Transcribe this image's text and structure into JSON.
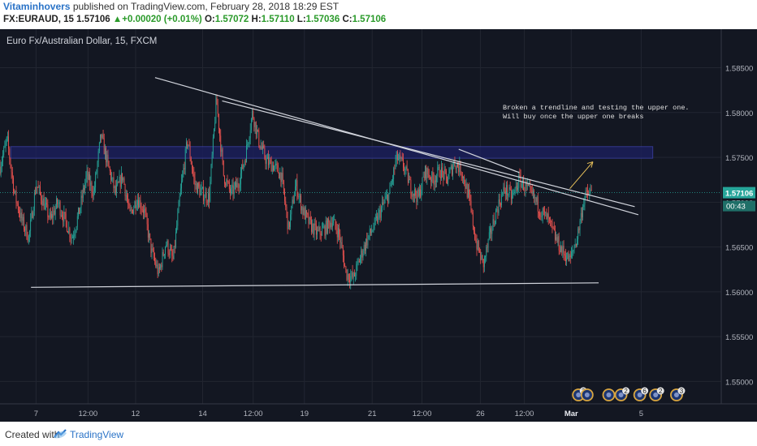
{
  "header": {
    "user": "Vitaminhovers",
    "published": " published on TradingView.com, February 28, 2018 18:29 EST",
    "symbol": "FX:EURAUD, 15",
    "last": "1.57106",
    "change": "+0.00020 (+0.01%)",
    "open_label": "O:",
    "open": "1.57072",
    "high_label": "H:",
    "high": "1.57110",
    "low_label": "L:",
    "low": "1.57036",
    "close_label": "C:",
    "close": "1.57106"
  },
  "footer": {
    "created": "Created with",
    "brand": "TradingView"
  },
  "colors": {
    "background": "#131722",
    "up": "#26a69a",
    "down": "#ef5350",
    "line": "#d1d4dc",
    "zone": "#1b1f5a",
    "zone_border": "#3a3fa0",
    "price_line": "#26a69a",
    "arrow": "#e8c15a"
  },
  "chart_data": {
    "type": "candlestick",
    "title": "Euro Fx/Australian Dollar, 15, FXCM",
    "ylim": [
      1.5475,
      1.5893
    ],
    "yticks": [
      "1.58500",
      "1.58000",
      "1.57500",
      "1.57000",
      "1.56500",
      "1.56000",
      "1.55500",
      "1.55000"
    ],
    "ytick_values": [
      1.585,
      1.58,
      1.575,
      1.57,
      1.565,
      1.56,
      1.555,
      1.55
    ],
    "xlim": [
      0,
      100
    ],
    "xticks": [
      "7",
      "12:00",
      "12",
      "14",
      "12:00",
      "19",
      "21",
      "12:00",
      "26",
      "12:00",
      "Mar",
      "5"
    ],
    "xtick_values": [
      5.0,
      12.2,
      18.8,
      28.1,
      35.1,
      42.2,
      51.6,
      58.5,
      66.6,
      72.7,
      79.2,
      88.9
    ],
    "last_price": "1.57106",
    "countdown": "00:43",
    "price_axis_partial": "1",
    "annotation": [
      "Broken a trendline and testing the upper one.",
      "Will buy once the upper one breaks"
    ],
    "anchors": [
      [
        0,
        1.574
      ],
      [
        1,
        1.577
      ],
      [
        2,
        1.571
      ],
      [
        3,
        1.568
      ],
      [
        4,
        1.566
      ],
      [
        5,
        1.572
      ],
      [
        7,
        1.568
      ],
      [
        8,
        1.57
      ],
      [
        10,
        1.566
      ],
      [
        11,
        1.569
      ],
      [
        12,
        1.573
      ],
      [
        13,
        1.571
      ],
      [
        14,
        1.5775
      ],
      [
        15,
        1.574
      ],
      [
        16,
        1.571
      ],
      [
        17,
        1.573
      ],
      [
        18,
        1.5685
      ],
      [
        19,
        1.5705
      ],
      [
        20,
        1.569
      ],
      [
        21,
        1.5645
      ],
      [
        22,
        1.562
      ],
      [
        23,
        1.5655
      ],
      [
        24,
        1.5635
      ],
      [
        25,
        1.571
      ],
      [
        26,
        1.577
      ],
      [
        27,
        1.572
      ],
      [
        28,
        1.571
      ],
      [
        29,
        1.5705
      ],
      [
        30,
        1.5815
      ],
      [
        31,
        1.573
      ],
      [
        32,
        1.571
      ],
      [
        33,
        1.572
      ],
      [
        34,
        1.575
      ],
      [
        35,
        1.58
      ],
      [
        36,
        1.5765
      ],
      [
        37,
        1.5745
      ],
      [
        38,
        1.574
      ],
      [
        39,
        1.573
      ],
      [
        40,
        1.567
      ],
      [
        41,
        1.572
      ],
      [
        42,
        1.569
      ],
      [
        43,
        1.5675
      ],
      [
        44,
        1.5665
      ],
      [
        45,
        1.567
      ],
      [
        46,
        1.568
      ],
      [
        47,
        1.5665
      ],
      [
        48,
        1.562
      ],
      [
        49,
        1.5615
      ],
      [
        50,
        1.564
      ],
      [
        51,
        1.566
      ],
      [
        52,
        1.5675
      ],
      [
        53,
        1.5695
      ],
      [
        54,
        1.571
      ],
      [
        55,
        1.575
      ],
      [
        56,
        1.574
      ],
      [
        57,
        1.5715
      ],
      [
        58,
        1.5705
      ],
      [
        59,
        1.5735
      ],
      [
        60,
        1.5725
      ],
      [
        61,
        1.5735
      ],
      [
        62,
        1.5725
      ],
      [
        63,
        1.5745
      ],
      [
        64,
        1.5735
      ],
      [
        65,
        1.5705
      ],
      [
        66,
        1.5655
      ],
      [
        67,
        1.563
      ],
      [
        68,
        1.5665
      ],
      [
        69,
        1.5695
      ],
      [
        70,
        1.5715
      ],
      [
        71,
        1.5705
      ],
      [
        72,
        1.5725
      ],
      [
        73,
        1.5715
      ],
      [
        74,
        1.5705
      ],
      [
        75,
        1.569
      ],
      [
        76,
        1.568
      ],
      [
        77,
        1.566
      ],
      [
        78,
        1.5645
      ],
      [
        79,
        1.5635
      ],
      [
        80,
        1.566
      ],
      [
        81,
        1.5705
      ],
      [
        82,
        1.5711
      ]
    ],
    "lines": [
      {
        "name": "upper-trendline",
        "x": [
          21.5,
          88.5
        ],
        "y": [
          1.5839,
          1.5686
        ]
      },
      {
        "name": "lower-trendline",
        "x": [
          30.8,
          88.0
        ],
        "y": [
          1.5813,
          1.5695
        ]
      },
      {
        "name": "peak-connector",
        "x": [
          63.6,
          72.0
        ],
        "y": [
          1.5759,
          1.5733
        ]
      },
      {
        "name": "support-line",
        "x": [
          4.3,
          83.0
        ],
        "y": [
          1.5605,
          1.561
        ]
      }
    ],
    "zone": {
      "x": [
        1.5,
        90.5
      ],
      "y": [
        1.5762,
        1.5749
      ]
    },
    "arrow": {
      "x": [
        79.0,
        82.2
      ],
      "y": [
        1.5715,
        1.5745
      ]
    },
    "events": [
      {
        "x": 80.2,
        "badge": "3"
      },
      {
        "x": 81.4,
        "badge": ""
      },
      {
        "x": 84.4,
        "badge": ""
      },
      {
        "x": 86.1,
        "badge": "2"
      },
      {
        "x": 88.7,
        "badge": "6"
      },
      {
        "x": 90.9,
        "badge": "2"
      },
      {
        "x": 93.8,
        "badge": "3"
      }
    ]
  }
}
